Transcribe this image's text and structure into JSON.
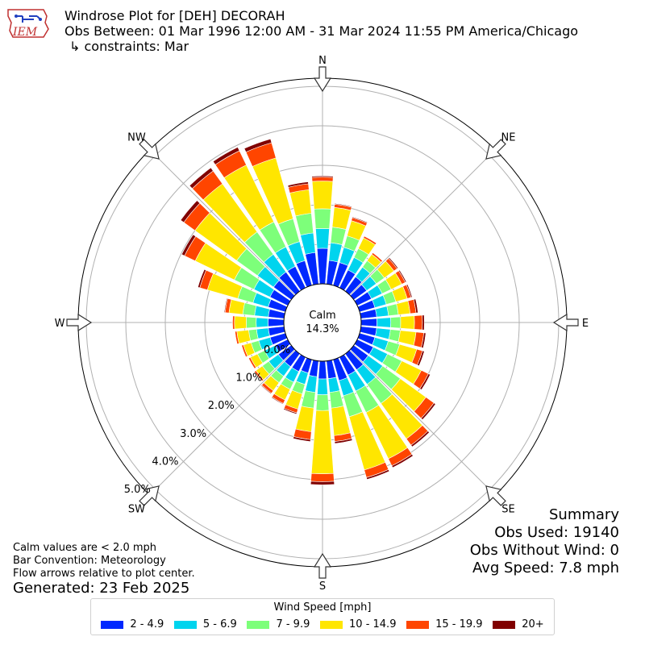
{
  "header": {
    "logo_text": "IEM",
    "title": "Windrose Plot for [DEH] DECORAH",
    "subtitle": "Obs Between: 01 Mar 1996 12:00 AM - 31 Mar 2024 11:55 PM America/Chicago",
    "constraints": "↳ constraints: Mar"
  },
  "summary": {
    "heading": "Summary",
    "obs_used": "Obs Used: 19140",
    "obs_without_wind": "Obs Without Wind: 0",
    "avg_speed": "Avg Speed: 7.8 mph"
  },
  "notes": {
    "calm_note": "Calm values are < 2.0 mph",
    "bar_convention": "Bar Convention: Meteorology",
    "flow_note": "Flow arrows relative to plot center.",
    "generated": "Generated: 23 Feb 2025"
  },
  "legend": {
    "title": "Wind Speed [mph]",
    "items": [
      {
        "label": "2 - 4.9",
        "color": "#0028ff"
      },
      {
        "label": "5 - 6.9",
        "color": "#00d4ee"
      },
      {
        "label": "7 - 9.9",
        "color": "#7dff7a"
      },
      {
        "label": "10 - 14.9",
        "color": "#ffe600"
      },
      {
        "label": "15 - 19.9",
        "color": "#ff4500"
      },
      {
        "label": "20+",
        "color": "#800000"
      }
    ]
  },
  "chart_data": {
    "type": "windrose",
    "calm_label": "Calm",
    "calm_value": "14.3%",
    "radial_ticks": [
      "0.0%",
      "1.0%",
      "2.0%",
      "3.0%",
      "4.0%",
      "5.0%"
    ],
    "radial_max": 5.2,
    "compass_labels": [
      {
        "label": "N",
        "angle": 0
      },
      {
        "label": "NE",
        "angle": 45
      },
      {
        "label": "E",
        "angle": 90
      },
      {
        "label": "SE",
        "angle": 135
      },
      {
        "label": "S",
        "angle": 180
      },
      {
        "label": "SW",
        "angle": 225
      },
      {
        "label": "W",
        "angle": 270
      },
      {
        "label": "NW",
        "angle": 315
      }
    ],
    "directions": [
      0,
      10,
      20,
      30,
      40,
      50,
      60,
      70,
      80,
      90,
      100,
      110,
      120,
      130,
      140,
      150,
      160,
      170,
      180,
      190,
      200,
      210,
      220,
      230,
      240,
      250,
      260,
      270,
      280,
      290,
      300,
      310,
      320,
      330,
      340,
      350
    ],
    "series": [
      {
        "name": "2 - 4.9",
        "values": [
          0.9,
          0.6,
          0.6,
          0.5,
          0.45,
          0.4,
          0.4,
          0.4,
          0.4,
          0.4,
          0.4,
          0.4,
          0.45,
          0.45,
          0.5,
          0.5,
          0.55,
          0.45,
          0.45,
          0.4,
          0.35,
          0.4,
          0.4,
          0.4,
          0.35,
          0.4,
          0.4,
          0.4,
          0.4,
          0.45,
          0.5,
          0.55,
          0.6,
          0.6,
          0.65,
          0.8
        ]
      },
      {
        "name": "5 - 6.9",
        "values": [
          0.5,
          0.45,
          0.4,
          0.35,
          0.3,
          0.3,
          0.3,
          0.3,
          0.3,
          0.35,
          0.35,
          0.35,
          0.4,
          0.45,
          0.45,
          0.45,
          0.4,
          0.35,
          0.4,
          0.4,
          0.3,
          0.3,
          0.3,
          0.3,
          0.3,
          0.3,
          0.3,
          0.3,
          0.35,
          0.4,
          0.45,
          0.5,
          0.55,
          0.55,
          0.5,
          0.5
        ]
      },
      {
        "name": "7 - 9.9",
        "values": [
          0.5,
          0.4,
          0.3,
          0.25,
          0.2,
          0.25,
          0.25,
          0.25,
          0.25,
          0.25,
          0.25,
          0.3,
          0.4,
          0.55,
          0.6,
          0.6,
          0.55,
          0.4,
          0.4,
          0.4,
          0.25,
          0.2,
          0.2,
          0.2,
          0.2,
          0.2,
          0.2,
          0.25,
          0.3,
          0.4,
          0.55,
          0.65,
          0.7,
          0.7,
          0.6,
          0.5
        ]
      },
      {
        "name": "10 - 14.9",
        "values": [
          0.7,
          0.5,
          0.4,
          0.3,
          0.2,
          0.3,
          0.3,
          0.3,
          0.3,
          0.35,
          0.4,
          0.45,
          0.55,
          0.8,
          1.1,
          1.3,
          1.4,
          0.7,
          1.6,
          0.6,
          0.4,
          0.3,
          0.25,
          0.2,
          0.2,
          0.2,
          0.3,
          0.3,
          0.35,
          0.8,
          1.1,
          1.3,
          1.5,
          1.6,
          1.6,
          0.6
        ]
      },
      {
        "name": "15 - 19.9",
        "values": [
          0.1,
          0.08,
          0.08,
          0.05,
          0.05,
          0.1,
          0.1,
          0.1,
          0.15,
          0.2,
          0.2,
          0.15,
          0.2,
          0.25,
          0.2,
          0.2,
          0.2,
          0.15,
          0.2,
          0.2,
          0.1,
          0.1,
          0.08,
          0.05,
          0.05,
          0.05,
          0.05,
          0.05,
          0.1,
          0.2,
          0.3,
          0.35,
          0.4,
          0.4,
          0.4,
          0.15
        ]
      },
      {
        "name": "20+",
        "values": [
          0.03,
          0.02,
          0.02,
          0.01,
          0.01,
          0.03,
          0.03,
          0.03,
          0.05,
          0.05,
          0.05,
          0.05,
          0.05,
          0.05,
          0.05,
          0.05,
          0.05,
          0.05,
          0.08,
          0.05,
          0.03,
          0.02,
          0.02,
          0.01,
          0.01,
          0.01,
          0.01,
          0.01,
          0.02,
          0.05,
          0.08,
          0.1,
          0.1,
          0.1,
          0.1,
          0.05
        ]
      }
    ]
  }
}
